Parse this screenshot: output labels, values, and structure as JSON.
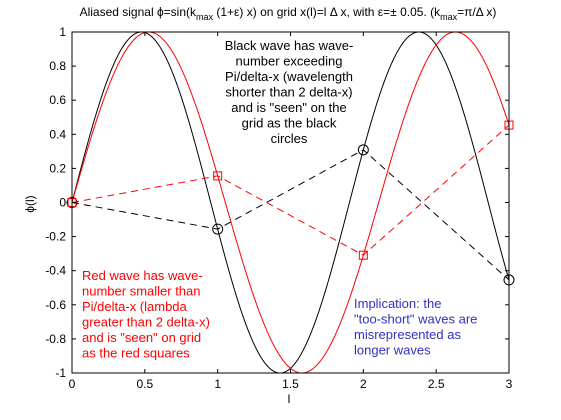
{
  "chart_data": {
    "type": "line",
    "title": "Aliased signal ϕ=sin(k_max (1+ε) x) on grid x(l)=l Δ x, with ε=± 0.05. (k_max=π/Δ x)",
    "title_parts": {
      "a": "Aliased signal ϕ=sin(k",
      "sub1": "max",
      "b": " (1+ε) x) on grid x(l)=l Δ x, with ε=± 0.05. (k",
      "sub2": "max",
      "c": "=π/Δ x)"
    },
    "xlabel": "l",
    "ylabel": "ϕ(l)",
    "xlim": [
      0,
      3
    ],
    "ylim": [
      -1,
      1
    ],
    "x_ticks": [
      "0",
      "0.5",
      "1",
      "1.5",
      "2",
      "2.5",
      "3"
    ],
    "y_ticks": [
      "1",
      "0.8",
      "0.6",
      "0.4",
      "0.2",
      "0",
      "-0.2",
      "-0.4",
      "-0.6",
      "-0.8",
      "-1"
    ],
    "grid": false,
    "series": [
      {
        "color": "#000000",
        "k_factor": 1.05,
        "style": "solid curve"
      },
      {
        "color": "#ff0000",
        "k_factor": 0.95,
        "style": "solid curve"
      },
      {
        "color": "#000000",
        "style": "dashed, circle markers",
        "x": [
          0,
          1,
          2,
          3
        ],
        "y": [
          0,
          -0.156,
          0.309,
          -0.454
        ]
      },
      {
        "color": "#ff0000",
        "style": "dashed, square markers",
        "x": [
          0,
          1,
          2,
          3
        ],
        "y": [
          0,
          0.156,
          -0.309,
          0.454
        ]
      }
    ],
    "annotations": [
      {
        "color": "#000000",
        "lines": [
          "Black wave has wave-",
          "number exceeding",
          "Pi/delta-x (wavelength",
          "shorter than 2 delta-x)",
          "and is \"seen\" on the",
          "grid as the black",
          "circles"
        ]
      },
      {
        "color": "#ff0000",
        "lines": [
          "Red wave has wave-",
          "number smaller than",
          "Pi/delta-x (lambda",
          "greater than 2 delta-x)",
          "and is \"seen\" on grid",
          "as the red squares"
        ]
      },
      {
        "color": "#3030c0",
        "lines": [
          "Implication: the",
          "\"too-short\" waves are",
          "misrepresented as",
          "longer waves"
        ]
      }
    ]
  }
}
